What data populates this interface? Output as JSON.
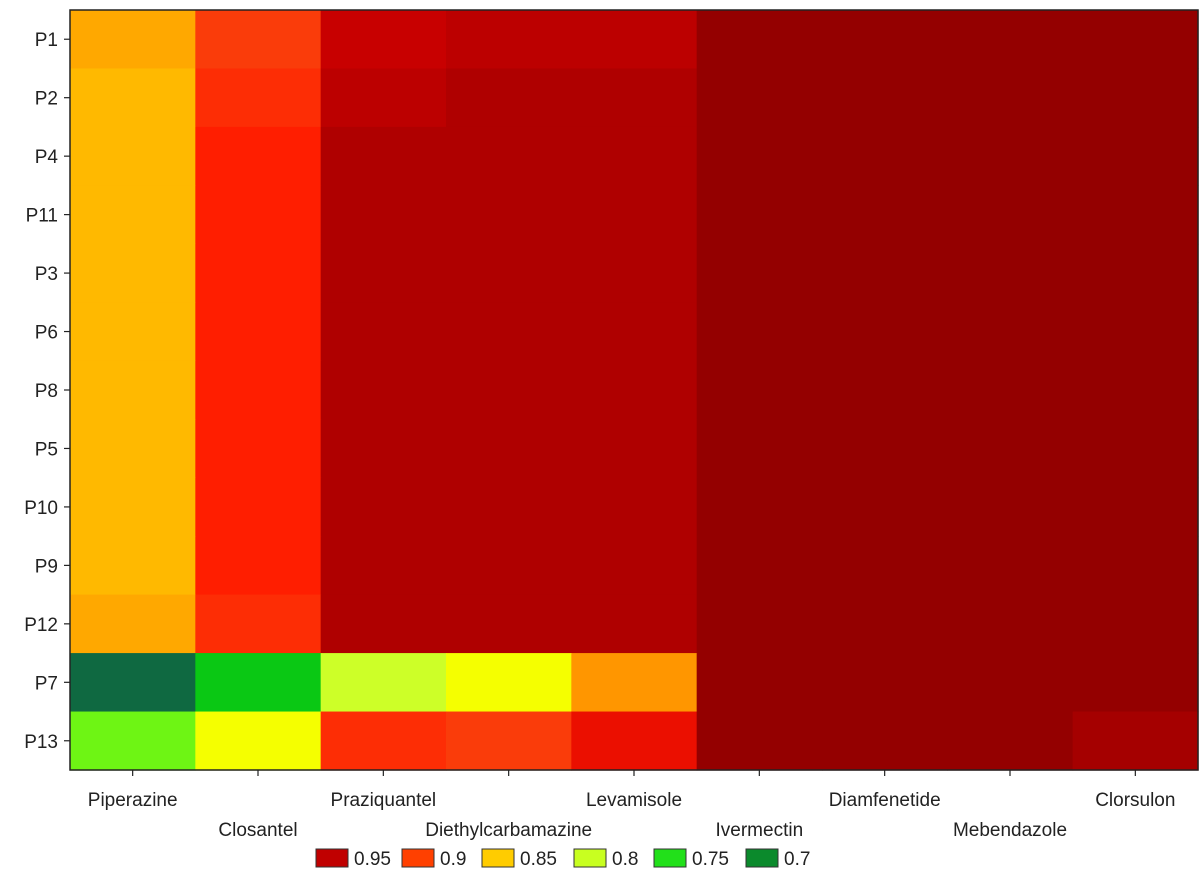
{
  "chart_data": {
    "type": "heatmap",
    "title": "",
    "xlabel": "",
    "ylabel": "",
    "rows": [
      "P1",
      "P2",
      "P4",
      "P11",
      "P3",
      "P6",
      "P8",
      "P5",
      "P10",
      "P9",
      "P12",
      "P7",
      "P13"
    ],
    "columns": [
      "Piperazine",
      "Closantel",
      "Praziquantel",
      "Diethylcarbamazine",
      "Levamisole",
      "Ivermectin",
      "Diamfenetide",
      "Mebendazole",
      "Clorsulon"
    ],
    "column_label_rows": [
      0,
      1,
      0,
      1,
      0,
      1,
      0,
      1,
      0
    ],
    "values": [
      [
        0.86,
        0.92,
        0.955,
        0.96,
        0.96,
        0.99,
        0.99,
        0.99,
        0.99
      ],
      [
        0.85,
        0.91,
        0.96,
        0.965,
        0.965,
        0.99,
        0.99,
        0.99,
        0.99
      ],
      [
        0.85,
        0.9,
        0.965,
        0.965,
        0.965,
        0.99,
        0.99,
        0.99,
        0.99
      ],
      [
        0.85,
        0.9,
        0.965,
        0.965,
        0.965,
        0.99,
        0.99,
        0.99,
        0.99
      ],
      [
        0.85,
        0.9,
        0.965,
        0.965,
        0.965,
        0.99,
        0.99,
        0.99,
        0.99
      ],
      [
        0.85,
        0.9,
        0.965,
        0.965,
        0.965,
        0.99,
        0.99,
        0.99,
        0.99
      ],
      [
        0.85,
        0.9,
        0.965,
        0.965,
        0.965,
        0.99,
        0.99,
        0.99,
        0.99
      ],
      [
        0.85,
        0.9,
        0.965,
        0.965,
        0.965,
        0.99,
        0.99,
        0.99,
        0.99
      ],
      [
        0.85,
        0.9,
        0.965,
        0.965,
        0.965,
        0.99,
        0.99,
        0.99,
        0.99
      ],
      [
        0.85,
        0.9,
        0.965,
        0.965,
        0.965,
        0.99,
        0.99,
        0.99,
        0.99
      ],
      [
        0.86,
        0.91,
        0.965,
        0.965,
        0.965,
        0.99,
        0.99,
        0.99,
        0.99
      ],
      [
        0.7,
        0.74,
        0.81,
        0.83,
        0.87,
        0.99,
        0.99,
        0.99,
        0.99
      ],
      [
        0.78,
        0.83,
        0.91,
        0.92,
        0.93,
        0.99,
        0.99,
        0.99,
        0.97
      ]
    ],
    "legend": [
      {
        "label": "0.95",
        "color": "#c00000"
      },
      {
        "label": "0.9",
        "color": "#ff4000"
      },
      {
        "label": "0.85",
        "color": "#ffcc00"
      },
      {
        "label": "0.8",
        "color": "#c8ff20"
      },
      {
        "label": "0.75",
        "color": "#22e01a"
      },
      {
        "label": "0.7",
        "color": "#0b8a2c"
      }
    ],
    "legend_placement": "bottom",
    "grid": false
  }
}
